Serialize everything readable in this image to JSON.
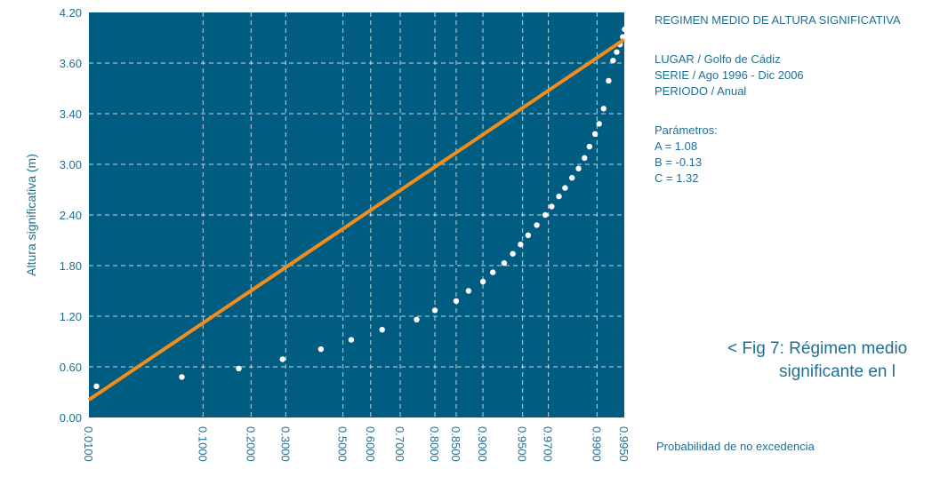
{
  "chart_data": {
    "type": "scatter",
    "xlabel": "Probabilidad de no excedencia",
    "ylabel": "Altura significativa (m)",
    "ylim": [
      0,
      4.2
    ],
    "y_ticks": [
      "0.00",
      "0.60",
      "1.20",
      "1.80",
      "2.40",
      "3.00",
      "3.40",
      "3.60",
      "4.20"
    ],
    "x_ticks": [
      "0.0100",
      "0.1000",
      "0.2000",
      "0.3000",
      "0.5000",
      "0.6000",
      "0.7000",
      "0.8000",
      "0.8500",
      "0.9000",
      "0.9500",
      "0.9700",
      "0.9900",
      "0.9950"
    ],
    "grid": true,
    "series": [
      {
        "kind": "points",
        "color": "#ffffff",
        "points": [
          [
            0.012,
            0.37
          ],
          [
            0.07,
            0.48
          ],
          [
            0.17,
            0.58
          ],
          [
            0.29,
            0.69
          ],
          [
            0.42,
            0.81
          ],
          [
            0.53,
            0.92
          ],
          [
            0.64,
            1.04
          ],
          [
            0.75,
            1.16
          ],
          [
            0.8,
            1.27
          ],
          [
            0.85,
            1.38
          ],
          [
            0.875,
            1.5
          ],
          [
            0.9,
            1.61
          ],
          [
            0.915,
            1.72
          ],
          [
            0.93,
            1.83
          ],
          [
            0.94,
            1.94
          ],
          [
            0.948,
            2.05
          ],
          [
            0.955,
            2.16
          ],
          [
            0.962,
            2.28
          ],
          [
            0.968,
            2.4
          ],
          [
            0.972,
            2.5
          ],
          [
            0.976,
            2.62
          ],
          [
            0.979,
            2.72
          ],
          [
            0.982,
            2.84
          ],
          [
            0.9845,
            2.95
          ],
          [
            0.9865,
            3.05
          ],
          [
            0.988,
            3.14
          ],
          [
            0.9895,
            3.24
          ],
          [
            0.9905,
            3.32
          ],
          [
            0.9915,
            3.42
          ],
          [
            0.9925,
            3.53
          ],
          [
            0.9933,
            3.63
          ],
          [
            0.9939,
            3.73
          ],
          [
            0.9944,
            3.82
          ],
          [
            0.9948,
            3.91
          ],
          [
            0.99505,
            4.0
          ]
        ]
      },
      {
        "kind": "fit-line",
        "color": "#f28c1b",
        "from": [
          0.01,
          0.21
        ],
        "to": [
          0.995,
          3.88
        ]
      }
    ]
  },
  "colors": {
    "plot_bg": "#005c80",
    "fit_line": "#f28c1b",
    "points": "#ffffff",
    "text": "#1f6f93"
  },
  "info": {
    "title": "REGIMEN MEDIO DE ALTURA SIGNIFICATIVA",
    "lugar": "LUGAR / Golfo de Cádiz",
    "serie": "SERIE / Ago 1996 - Dic 2006",
    "periodo": "PERIODO / Anual",
    "params_title": "Parámetros:",
    "param_a": "A = 1.08",
    "param_b": "B = -0.13",
    "param_c": "C = 1.32"
  },
  "caption": {
    "line1": "< Fig 7: Régimen medio",
    "line2": "significante en l"
  }
}
